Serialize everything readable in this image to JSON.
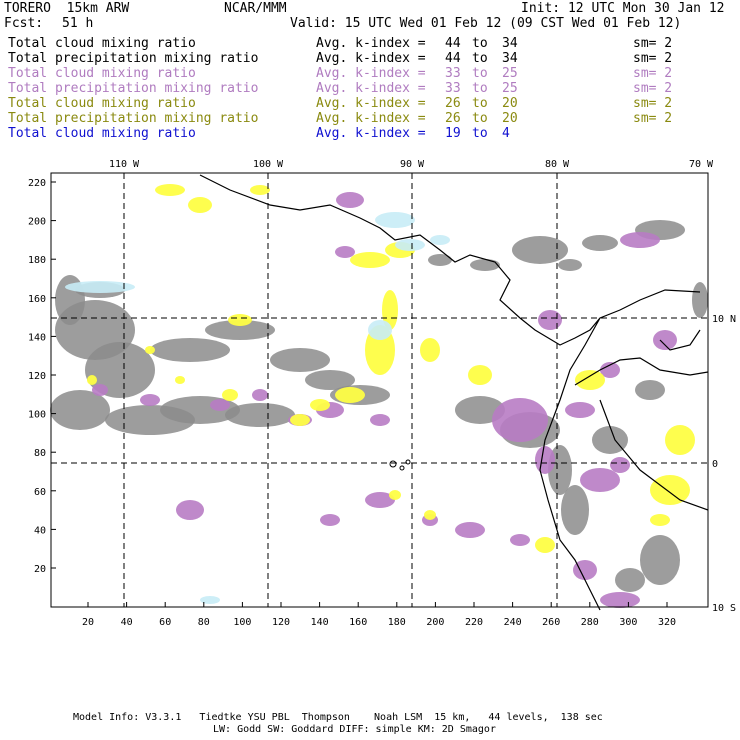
{
  "header": {
    "model": "TORERO  15km ARW",
    "org": "NCAR/MMM",
    "init": "Init: 12 UTC Mon 30 Jan 12",
    "fcst_label": "Fcst:",
    "fcst_value": "51 h",
    "valid": "Valid: 15 UTC Wed 01 Feb 12 (09 CST Wed 01 Feb 12)"
  },
  "legend": [
    {
      "name": "Total cloud mixing ratio",
      "index_label": "Avg. k-index =",
      "from": "44",
      "to_word": "to",
      "to": "34",
      "sm": "sm= 2",
      "color": "#000000"
    },
    {
      "name": "Total precipitation mixing ratio",
      "index_label": "Avg. k-index =",
      "from": "44",
      "to_word": "to",
      "to": "34",
      "sm": "sm= 2",
      "color": "#000000"
    },
    {
      "name": "Total cloud mixing ratio",
      "index_label": "Avg. k-index =",
      "from": "33",
      "to_word": "to",
      "to": "25",
      "sm": "sm= 2",
      "color": "#b07cc0"
    },
    {
      "name": "Total precipitation mixing ratio",
      "index_label": "Avg. k-index =",
      "from": "33",
      "to_word": "to",
      "to": "25",
      "sm": "sm= 2",
      "color": "#b07cc0"
    },
    {
      "name": "Total cloud mixing ratio",
      "index_label": "Avg. k-index =",
      "from": "26",
      "to_word": "to",
      "to": "20",
      "sm": "sm= 2",
      "color": "#8a8a10"
    },
    {
      "name": "Total precipitation mixing ratio",
      "index_label": "Avg. k-index =",
      "from": "26",
      "to_word": "to",
      "to": "20",
      "sm": "sm= 2",
      "color": "#8a8a10"
    },
    {
      "name": "Total cloud mixing ratio",
      "index_label": "Avg. k-index =",
      "from": "19",
      "to_word": "to",
      "to": "4",
      "sm": "",
      "color": "#1010d0"
    }
  ],
  "map": {
    "lon_labels": [
      "110 W",
      "100 W",
      "90 W",
      "80 W",
      "70 W"
    ],
    "lat_labels": [
      "10 N",
      "0",
      "10 S"
    ],
    "x_ticks": [
      "20",
      "40",
      "60",
      "80",
      "100",
      "120",
      "140",
      "160",
      "180",
      "200",
      "220",
      "240",
      "260",
      "280",
      "300",
      "320"
    ],
    "y_ticks": [
      "220",
      "200",
      "180",
      "160",
      "140",
      "120",
      "100",
      "80",
      "60",
      "40",
      "20"
    ],
    "colors": {
      "gray": "#8c8c8c",
      "purple": "#b87cc4",
      "yellow": "#fefe44",
      "lightblue": "#c8ecf6"
    }
  },
  "footer": {
    "line1": "Model Info: V3.3.1   Tiedtke YSU PBL  Thompson    Noah LSM  15 km,   44 levels,  138 sec",
    "line2": "LW: Godd SW: Goddard DIFF: simple KM: 2D Smagor"
  }
}
